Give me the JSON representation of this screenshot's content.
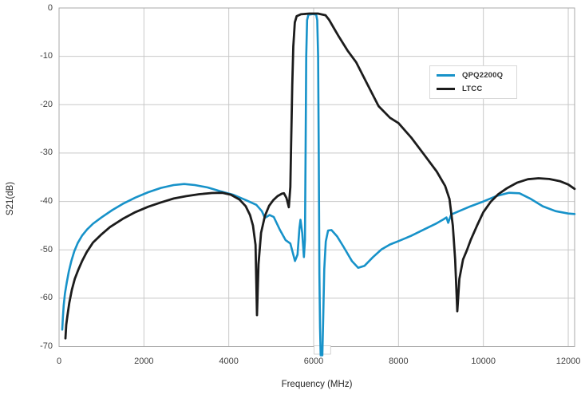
{
  "chart_data": {
    "type": "line",
    "title": "",
    "xlabel": "Frequency (MHz)",
    "ylabel": "S21(dB)",
    "xlim": [
      0,
      12150
    ],
    "ylim": [
      -70,
      0
    ],
    "x_ticks": [
      0,
      2000,
      4000,
      6000,
      8000,
      10000,
      12000
    ],
    "y_ticks": [
      0,
      -10,
      -20,
      -30,
      -40,
      -50,
      -60,
      -70
    ],
    "grid": true,
    "legend_position": "upper-right-inside",
    "series": [
      {
        "name": "QPQ2200Q",
        "color": "#1792C9",
        "points": [
          [
            75,
            -66.5
          ],
          [
            90,
            -64
          ],
          [
            110,
            -61.5
          ],
          [
            140,
            -59
          ],
          [
            180,
            -56.8
          ],
          [
            230,
            -54.5
          ],
          [
            290,
            -52.3
          ],
          [
            360,
            -50.3
          ],
          [
            440,
            -48.6
          ],
          [
            540,
            -47.1
          ],
          [
            660,
            -45.8
          ],
          [
            800,
            -44.6
          ],
          [
            1000,
            -43.3
          ],
          [
            1250,
            -41.8
          ],
          [
            1500,
            -40.5
          ],
          [
            1800,
            -39.2
          ],
          [
            2100,
            -38.1
          ],
          [
            2400,
            -37.2
          ],
          [
            2700,
            -36.6
          ],
          [
            2950,
            -36.4
          ],
          [
            3200,
            -36.6
          ],
          [
            3500,
            -37.1
          ],
          [
            3800,
            -37.9
          ],
          [
            4100,
            -38.6
          ],
          [
            4400,
            -39.7
          ],
          [
            4650,
            -40.7
          ],
          [
            4780,
            -42
          ],
          [
            4850,
            -43.4
          ],
          [
            4960,
            -42.8
          ],
          [
            5060,
            -43.2
          ],
          [
            5200,
            -45.8
          ],
          [
            5340,
            -48
          ],
          [
            5450,
            -48.7
          ],
          [
            5560,
            -52.3
          ],
          [
            5620,
            -51
          ],
          [
            5665,
            -45.5
          ],
          [
            5690,
            -43.8
          ],
          [
            5730,
            -46.5
          ],
          [
            5770,
            -51.5
          ],
          [
            5795,
            -48
          ],
          [
            5810,
            -30
          ],
          [
            5825,
            -10
          ],
          [
            5845,
            -2.5
          ],
          [
            5875,
            -1.4
          ],
          [
            5990,
            -1.25
          ],
          [
            6060,
            -1.4
          ],
          [
            6085,
            -2.5
          ],
          [
            6105,
            -10
          ],
          [
            6120,
            -30
          ],
          [
            6135,
            -55
          ],
          [
            6150,
            -66
          ],
          [
            6165,
            -71.8
          ],
          [
            6205,
            -71.8
          ],
          [
            6225,
            -64
          ],
          [
            6250,
            -54
          ],
          [
            6285,
            -48.3
          ],
          [
            6340,
            -46
          ],
          [
            6420,
            -45.9
          ],
          [
            6550,
            -47.2
          ],
          [
            6700,
            -49.3
          ],
          [
            6900,
            -52.3
          ],
          [
            7050,
            -53.7
          ],
          [
            7200,
            -53.3
          ],
          [
            7400,
            -51.5
          ],
          [
            7600,
            -49.9
          ],
          [
            7800,
            -48.9
          ],
          [
            8000,
            -48.2
          ],
          [
            8300,
            -47.1
          ],
          [
            8600,
            -45.8
          ],
          [
            8900,
            -44.5
          ],
          [
            9060,
            -43.7
          ],
          [
            9130,
            -43.3
          ],
          [
            9170,
            -44.4
          ],
          [
            9240,
            -42.7
          ],
          [
            9400,
            -42.1
          ],
          [
            9700,
            -41
          ],
          [
            10000,
            -40
          ],
          [
            10300,
            -38.9
          ],
          [
            10600,
            -38.2
          ],
          [
            10850,
            -38.3
          ],
          [
            11100,
            -39.4
          ],
          [
            11400,
            -41
          ],
          [
            11700,
            -42
          ],
          [
            12000,
            -42.5
          ],
          [
            12150,
            -42.6
          ]
        ]
      },
      {
        "name": "LTCC",
        "color": "#1C1C1C",
        "points": [
          [
            150,
            -68.3
          ],
          [
            170,
            -65.5
          ],
          [
            200,
            -63.5
          ],
          [
            240,
            -61
          ],
          [
            300,
            -58.3
          ],
          [
            370,
            -56
          ],
          [
            450,
            -54.2
          ],
          [
            550,
            -52.2
          ],
          [
            650,
            -50.5
          ],
          [
            800,
            -48.5
          ],
          [
            1000,
            -46.8
          ],
          [
            1200,
            -45.3
          ],
          [
            1500,
            -43.6
          ],
          [
            1800,
            -42.2
          ],
          [
            2100,
            -41.1
          ],
          [
            2400,
            -40.2
          ],
          [
            2700,
            -39.4
          ],
          [
            3000,
            -38.9
          ],
          [
            3300,
            -38.5
          ],
          [
            3600,
            -38.25
          ],
          [
            3850,
            -38.2
          ],
          [
            4050,
            -38.6
          ],
          [
            4250,
            -39.6
          ],
          [
            4400,
            -41
          ],
          [
            4500,
            -42.8
          ],
          [
            4570,
            -45
          ],
          [
            4630,
            -49
          ],
          [
            4665,
            -63.5
          ],
          [
            4700,
            -53
          ],
          [
            4760,
            -46.5
          ],
          [
            4850,
            -43
          ],
          [
            4950,
            -40.9
          ],
          [
            5050,
            -39.7
          ],
          [
            5150,
            -38.9
          ],
          [
            5250,
            -38.4
          ],
          [
            5300,
            -38.3
          ],
          [
            5360,
            -39.3
          ],
          [
            5415,
            -41.2
          ],
          [
            5450,
            -37
          ],
          [
            5470,
            -28
          ],
          [
            5495,
            -16
          ],
          [
            5520,
            -8
          ],
          [
            5555,
            -3
          ],
          [
            5600,
            -1.7
          ],
          [
            5700,
            -1.3
          ],
          [
            5900,
            -1.15
          ],
          [
            6100,
            -1.15
          ],
          [
            6280,
            -1.5
          ],
          [
            6360,
            -2.4
          ],
          [
            6480,
            -4.2
          ],
          [
            6600,
            -6
          ],
          [
            6800,
            -8.8
          ],
          [
            7000,
            -11.2
          ],
          [
            7250,
            -15.5
          ],
          [
            7530,
            -20.3
          ],
          [
            7800,
            -22.7
          ],
          [
            8000,
            -23.8
          ],
          [
            8300,
            -26.8
          ],
          [
            8600,
            -30.3
          ],
          [
            8900,
            -33.8
          ],
          [
            9100,
            -36.8
          ],
          [
            9200,
            -39.5
          ],
          [
            9280,
            -45
          ],
          [
            9335,
            -52
          ],
          [
            9385,
            -62.7
          ],
          [
            9435,
            -56
          ],
          [
            9520,
            -52
          ],
          [
            9610,
            -50.1
          ],
          [
            9700,
            -48
          ],
          [
            9850,
            -45
          ],
          [
            10000,
            -42.2
          ],
          [
            10170,
            -40.1
          ],
          [
            10350,
            -38.5
          ],
          [
            10550,
            -37.3
          ],
          [
            10800,
            -36.1
          ],
          [
            11050,
            -35.4
          ],
          [
            11300,
            -35.2
          ],
          [
            11550,
            -35.35
          ],
          [
            11800,
            -35.8
          ],
          [
            12000,
            -36.5
          ],
          [
            12150,
            -37.4
          ]
        ]
      }
    ]
  },
  "colors": {
    "background": "#FFFFFF",
    "gridline": "#C8C8C8",
    "axis_line": "#A9A9A9",
    "tick_text": "#3F3F3F",
    "legend_border": "#D9D9D9"
  }
}
